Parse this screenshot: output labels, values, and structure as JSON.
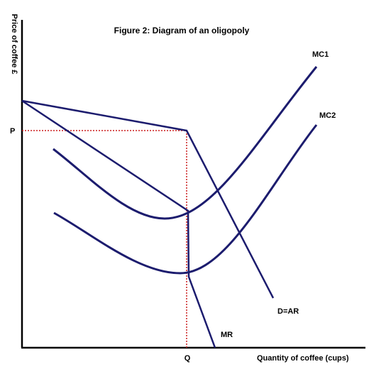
{
  "title": "Figure 2: Diagram of an oligopoly",
  "axes": {
    "y_label": "Price of coffee £",
    "x_label": "Quantity of coffee (cups)",
    "price_marker": "P",
    "quantity_marker": "Q"
  },
  "curves": {
    "mc1": "MC1",
    "mc2": "MC2",
    "demand": "D=AR",
    "mr": "MR"
  },
  "colors": {
    "curve": "#1c1c6e",
    "axis": "#000000",
    "dotted_guide": "#cc1f1f"
  }
}
